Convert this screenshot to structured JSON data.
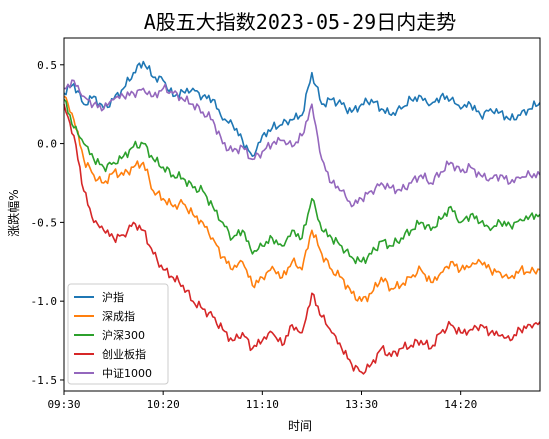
{
  "chart_data": {
    "type": "line",
    "title": "A股五大指数2023-05-29日内走势",
    "xlabel": "时间",
    "ylabel": "涨跌幅%",
    "ylim": [
      -1.57,
      0.67
    ],
    "yticks": [
      0.5,
      0.0,
      -0.5,
      -1.0,
      -1.5
    ],
    "ytick_labels": [
      "0.5",
      "0.0",
      "-0.5",
      "-1.0",
      "-1.5"
    ],
    "xticks": [
      "09:30",
      "10:20",
      "11:10",
      "13:30",
      "14:20"
    ],
    "legend_position": "lower-left",
    "grid": false,
    "x": [
      "09:30",
      "09:35",
      "09:40",
      "09:45",
      "09:50",
      "09:55",
      "10:00",
      "10:05",
      "10:10",
      "10:15",
      "10:20",
      "10:25",
      "10:30",
      "10:35",
      "10:40",
      "10:45",
      "10:50",
      "10:55",
      "11:00",
      "11:05",
      "11:10",
      "11:15",
      "11:20",
      "11:25",
      "11:30/13:00",
      "13:05",
      "13:10",
      "13:15",
      "13:20",
      "13:25",
      "13:30",
      "13:35",
      "13:40",
      "13:45",
      "13:50",
      "13:55",
      "14:00",
      "14:05",
      "14:10",
      "14:15",
      "14:20",
      "14:25",
      "14:30",
      "14:35",
      "14:40",
      "14:45",
      "14:50",
      "14:55",
      "15:00"
    ],
    "series": [
      {
        "name": "沪指",
        "color": "#1f77b4",
        "values": [
          0.32,
          0.38,
          0.25,
          0.3,
          0.22,
          0.28,
          0.35,
          0.45,
          0.52,
          0.42,
          0.4,
          0.3,
          0.33,
          0.35,
          0.3,
          0.28,
          0.15,
          0.12,
          0.02,
          -0.08,
          0.05,
          0.1,
          0.12,
          0.15,
          0.18,
          0.45,
          0.25,
          0.28,
          0.25,
          0.2,
          0.25,
          0.28,
          0.22,
          0.18,
          0.22,
          0.28,
          0.3,
          0.25,
          0.3,
          0.28,
          0.22,
          0.25,
          0.18,
          0.22,
          0.2,
          0.15,
          0.18,
          0.22,
          0.26
        ]
      },
      {
        "name": "深成指",
        "color": "#ff7f0e",
        "values": [
          0.3,
          0.15,
          -0.1,
          -0.2,
          -0.25,
          -0.18,
          -0.2,
          -0.15,
          -0.12,
          -0.3,
          -0.35,
          -0.4,
          -0.38,
          -0.45,
          -0.5,
          -0.6,
          -0.72,
          -0.8,
          -0.75,
          -0.9,
          -0.85,
          -0.78,
          -0.85,
          -0.75,
          -0.8,
          -0.55,
          -0.7,
          -0.8,
          -0.85,
          -0.95,
          -1.0,
          -0.95,
          -0.85,
          -0.92,
          -0.9,
          -0.85,
          -0.8,
          -0.88,
          -0.82,
          -0.75,
          -0.8,
          -0.78,
          -0.75,
          -0.8,
          -0.82,
          -0.85,
          -0.8,
          -0.82,
          -0.8
        ]
      },
      {
        "name": "沪深300",
        "color": "#2ca02c",
        "values": [
          0.28,
          0.1,
          0.0,
          -0.1,
          -0.15,
          -0.12,
          -0.08,
          -0.02,
          0.0,
          -0.1,
          -0.15,
          -0.2,
          -0.22,
          -0.28,
          -0.3,
          -0.4,
          -0.5,
          -0.6,
          -0.55,
          -0.7,
          -0.65,
          -0.6,
          -0.65,
          -0.55,
          -0.6,
          -0.35,
          -0.55,
          -0.6,
          -0.65,
          -0.72,
          -0.75,
          -0.7,
          -0.62,
          -0.65,
          -0.6,
          -0.55,
          -0.5,
          -0.55,
          -0.48,
          -0.4,
          -0.5,
          -0.45,
          -0.5,
          -0.55,
          -0.5,
          -0.52,
          -0.48,
          -0.46,
          -0.45
        ]
      },
      {
        "name": "创业板指",
        "color": "#d62728",
        "values": [
          0.25,
          0.05,
          -0.3,
          -0.5,
          -0.55,
          -0.6,
          -0.58,
          -0.5,
          -0.55,
          -0.7,
          -0.8,
          -0.85,
          -0.9,
          -1.0,
          -1.05,
          -1.1,
          -1.18,
          -1.25,
          -1.2,
          -1.3,
          -1.25,
          -1.2,
          -1.28,
          -1.15,
          -1.2,
          -0.95,
          -1.1,
          -1.2,
          -1.3,
          -1.4,
          -1.45,
          -1.4,
          -1.3,
          -1.35,
          -1.3,
          -1.28,
          -1.25,
          -1.3,
          -1.2,
          -1.15,
          -1.2,
          -1.18,
          -1.15,
          -1.2,
          -1.22,
          -1.25,
          -1.18,
          -1.15,
          -1.13
        ]
      },
      {
        "name": "中证1000",
        "color": "#9467bd",
        "values": [
          0.35,
          0.4,
          0.3,
          0.25,
          0.22,
          0.28,
          0.3,
          0.32,
          0.35,
          0.3,
          0.35,
          0.32,
          0.28,
          0.25,
          0.2,
          0.15,
          0.0,
          -0.05,
          -0.02,
          -0.1,
          -0.05,
          0.0,
          0.02,
          -0.02,
          0.05,
          0.25,
          -0.1,
          -0.25,
          -0.3,
          -0.4,
          -0.35,
          -0.3,
          -0.25,
          -0.28,
          -0.3,
          -0.25,
          -0.2,
          -0.25,
          -0.18,
          -0.12,
          -0.18,
          -0.15,
          -0.2,
          -0.22,
          -0.2,
          -0.25,
          -0.22,
          -0.2,
          -0.2
        ]
      }
    ]
  }
}
